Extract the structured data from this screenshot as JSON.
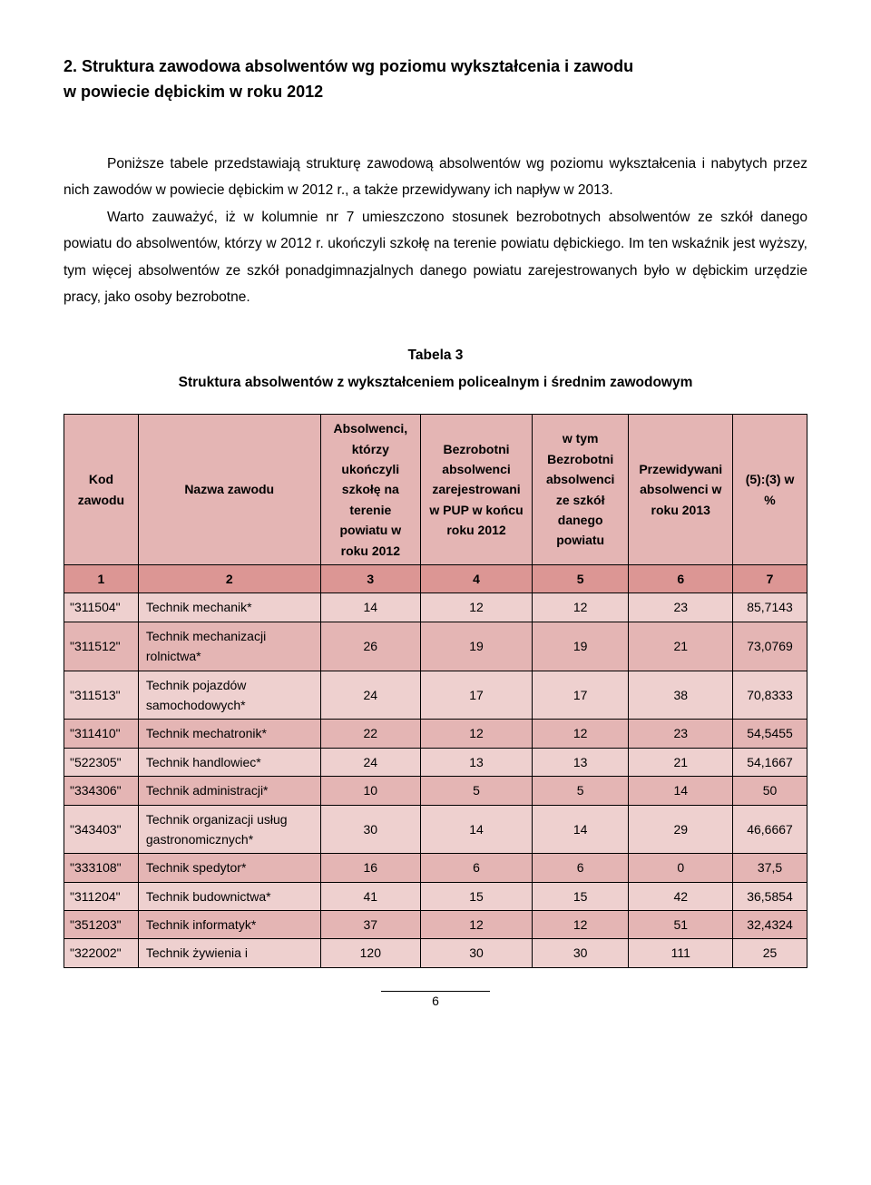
{
  "heading_line1": "2. Struktura zawodowa absolwentów wg poziomu wykształcenia i zawodu",
  "heading_line2": "w powiecie dębickim w roku 2012",
  "para1_a": "Poniższe tabele przedstawiają strukturę zawodową absolwentów wg poziomu wykształcenia i nabytych przez nich zawodów w powiecie dębickim w 2012 r., a także przewidywany ich napływ w 2013.",
  "para1_b": "Warto zauważyć, iż w kolumnie nr 7 umieszczono stosunek bezrobotnych absolwentów ze szkół danego powiatu do absolwentów, którzy w 2012 r. ukończyli szkołę na terenie powiatu dębickiego. Im ten wskaźnik jest wyższy, tym więcej absolwentów ze szkół ponadgimnazjalnych danego powiatu zarejestrowanych było w dębickim urzędzie pracy, jako osoby bezrobotne.",
  "table_caption_line1": "Tabela 3",
  "table_caption_line2": "Struktura absolwentów z wykształceniem policealnym i średnim zawodowym",
  "headers": {
    "h1": "Kod zawodu",
    "h2": "Nazwa zawodu",
    "h3": "Absolwenci, którzy ukończyli szkołę na terenie powiatu w roku 2012",
    "h4": "Bezrobotni absolwenci zarejestrowani w PUP w końcu roku 2012",
    "h5": "w tym Bezrobotni absolwenci ze szkół danego powiatu",
    "h6": "Przewidywani absolwenci w roku 2013",
    "h7": "(5):(3) w %"
  },
  "numrow": [
    "1",
    "2",
    "3",
    "4",
    "5",
    "6",
    "7"
  ],
  "colors": {
    "header_bg": "#e4b5b4",
    "numrow_bg": "#dc9694",
    "row_a": "#eed0cf",
    "row_b": "#e4b5b4"
  },
  "rows": [
    {
      "code": "\"311504\"",
      "name": "Technik mechanik*",
      "c3": "14",
      "c4": "12",
      "c5": "12",
      "c6": "23",
      "c7": "85,7143"
    },
    {
      "code": "\"311512\"",
      "name": "Technik mechanizacji rolnictwa*",
      "c3": "26",
      "c4": "19",
      "c5": "19",
      "c6": "21",
      "c7": "73,0769"
    },
    {
      "code": "\"311513\"",
      "name": "Technik pojazdów samochodowych*",
      "c3": "24",
      "c4": "17",
      "c5": "17",
      "c6": "38",
      "c7": "70,8333"
    },
    {
      "code": "\"311410\"",
      "name": "Technik mechatronik*",
      "c3": "22",
      "c4": "12",
      "c5": "12",
      "c6": "23",
      "c7": "54,5455"
    },
    {
      "code": "\"522305\"",
      "name": "Technik handlowiec*",
      "c3": "24",
      "c4": "13",
      "c5": "13",
      "c6": "21",
      "c7": "54,1667"
    },
    {
      "code": "\"334306\"",
      "name": "Technik administracji*",
      "c3": "10",
      "c4": "5",
      "c5": "5",
      "c6": "14",
      "c7": "50"
    },
    {
      "code": "\"343403\"",
      "name": "Technik organizacji usług gastronomicznych*",
      "c3": "30",
      "c4": "14",
      "c5": "14",
      "c6": "29",
      "c7": "46,6667"
    },
    {
      "code": "\"333108\"",
      "name": "Technik spedytor*",
      "c3": "16",
      "c4": "6",
      "c5": "6",
      "c6": "0",
      "c7": "37,5"
    },
    {
      "code": "\"311204\"",
      "name": "Technik budownictwa*",
      "c3": "41",
      "c4": "15",
      "c5": "15",
      "c6": "42",
      "c7": "36,5854"
    },
    {
      "code": "\"351203\"",
      "name": "Technik informatyk*",
      "c3": "37",
      "c4": "12",
      "c5": "12",
      "c6": "51",
      "c7": "32,4324"
    },
    {
      "code": "\"322002\"",
      "name": "Technik żywienia i",
      "c3": "120",
      "c4": "30",
      "c5": "30",
      "c6": "111",
      "c7": "25"
    }
  ],
  "page_number": "6"
}
